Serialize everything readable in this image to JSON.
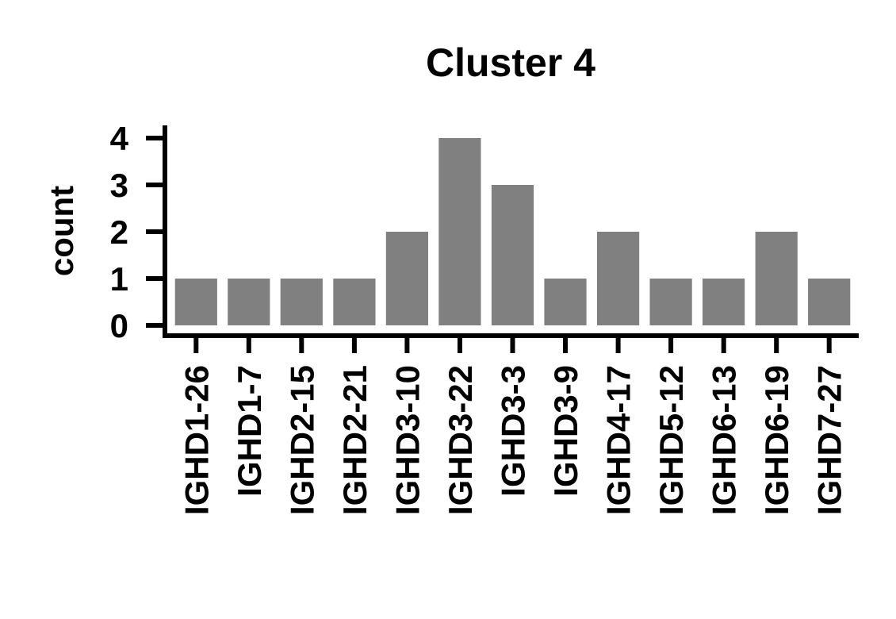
{
  "chart_data": {
    "type": "bar",
    "title": "Cluster 4",
    "xlabel": "",
    "ylabel": "count",
    "categories": [
      "IGHD1-26",
      "IGHD1-7",
      "IGHD2-15",
      "IGHD2-21",
      "IGHD3-10",
      "IGHD3-22",
      "IGHD3-3",
      "IGHD3-9",
      "IGHD4-17",
      "IGHD5-12",
      "IGHD6-13",
      "IGHD6-19",
      "IGHD7-27"
    ],
    "values": [
      1,
      1,
      1,
      1,
      2,
      4,
      3,
      1,
      2,
      1,
      1,
      2,
      1
    ],
    "ylim": [
      0,
      4
    ],
    "yticks": [
      0,
      1,
      2,
      3,
      4
    ],
    "bar_color": "#808080",
    "grid": false,
    "legend": "none"
  }
}
